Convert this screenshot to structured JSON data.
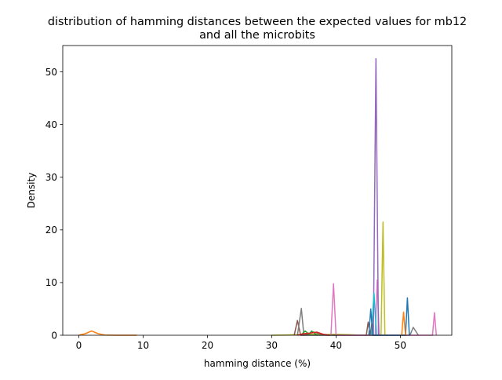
{
  "chart_data": {
    "type": "line",
    "title": "distribution of hamming distances between the expected values for mb12\nand all the microbits",
    "xlabel": "hamming distance (%)",
    "ylabel": "Density",
    "xlim": [
      -2.5,
      58
    ],
    "ylim": [
      0,
      55
    ],
    "x_ticks": [
      0,
      10,
      20,
      30,
      40,
      50
    ],
    "y_ticks": [
      0,
      10,
      20,
      30,
      40,
      50
    ],
    "grid": false,
    "legend": "none",
    "series": [
      {
        "color": "#ff7f0e",
        "points": [
          [
            0,
            0
          ],
          [
            1,
            0.3
          ],
          [
            2,
            0.8
          ],
          [
            3,
            0.3
          ],
          [
            4,
            0.05
          ],
          [
            6,
            0
          ],
          [
            9,
            0
          ]
        ]
      },
      {
        "color": "#bcbd22",
        "points": [
          [
            30,
            0
          ],
          [
            32,
            0.05
          ],
          [
            34,
            0.1
          ],
          [
            36,
            0.2
          ],
          [
            38,
            0.1
          ],
          [
            40,
            0.2
          ],
          [
            42,
            0.1
          ],
          [
            44,
            0
          ],
          [
            47,
            0
          ],
          [
            47.3,
            21.5
          ],
          [
            47.6,
            0
          ],
          [
            48,
            0
          ]
        ]
      },
      {
        "color": "#8c564b",
        "points": [
          [
            33.5,
            0
          ],
          [
            34,
            2.8
          ],
          [
            34.5,
            0
          ],
          [
            35,
            0
          ],
          [
            36.5,
            0.6
          ],
          [
            37.5,
            0.3
          ],
          [
            38.5,
            0
          ],
          [
            44.7,
            0
          ],
          [
            45,
            2.5
          ],
          [
            45.3,
            0
          ],
          [
            45.6,
            2.5
          ],
          [
            45.8,
            0
          ]
        ]
      },
      {
        "color": "#7f7f7f",
        "points": [
          [
            34,
            0
          ],
          [
            34.6,
            5.1
          ],
          [
            35,
            0
          ],
          [
            51.5,
            0
          ],
          [
            52,
            1.5
          ],
          [
            52.8,
            0
          ]
        ]
      },
      {
        "color": "#2ca02c",
        "points": [
          [
            34.5,
            0
          ],
          [
            35.2,
            0.8
          ],
          [
            35.8,
            0.2
          ],
          [
            36.2,
            0.8
          ],
          [
            36.8,
            0.2
          ],
          [
            37.2,
            0
          ]
        ]
      },
      {
        "color": "#d62728",
        "points": [
          [
            34,
            0
          ],
          [
            35,
            0.3
          ],
          [
            36,
            0.4
          ],
          [
            37,
            0.6
          ],
          [
            38,
            0.2
          ],
          [
            39,
            0
          ]
        ]
      },
      {
        "color": "#e377c2",
        "points": [
          [
            39.2,
            0
          ],
          [
            39.6,
            9.8
          ],
          [
            40,
            0
          ],
          [
            46.1,
            0
          ],
          [
            46.4,
            10.5
          ],
          [
            46.7,
            0
          ],
          [
            55,
            0
          ],
          [
            55.3,
            4.3
          ],
          [
            55.6,
            0
          ]
        ]
      },
      {
        "color": "#9467bd",
        "points": [
          [
            45.8,
            0
          ],
          [
            46.2,
            52.5
          ],
          [
            46.6,
            0
          ]
        ]
      },
      {
        "color": "#17becf",
        "points": [
          [
            45.5,
            0
          ],
          [
            45.9,
            8.0
          ],
          [
            46.3,
            0
          ]
        ]
      },
      {
        "color": "#1f77b4",
        "points": [
          [
            45.1,
            0
          ],
          [
            45.4,
            5.0
          ],
          [
            45.7,
            0
          ],
          [
            50.8,
            0
          ],
          [
            51.1,
            7.1
          ],
          [
            51.4,
            0
          ]
        ]
      },
      {
        "color": "#ff7f0e",
        "points": [
          [
            50.2,
            0
          ],
          [
            50.5,
            4.4
          ],
          [
            50.8,
            0
          ]
        ]
      }
    ]
  }
}
